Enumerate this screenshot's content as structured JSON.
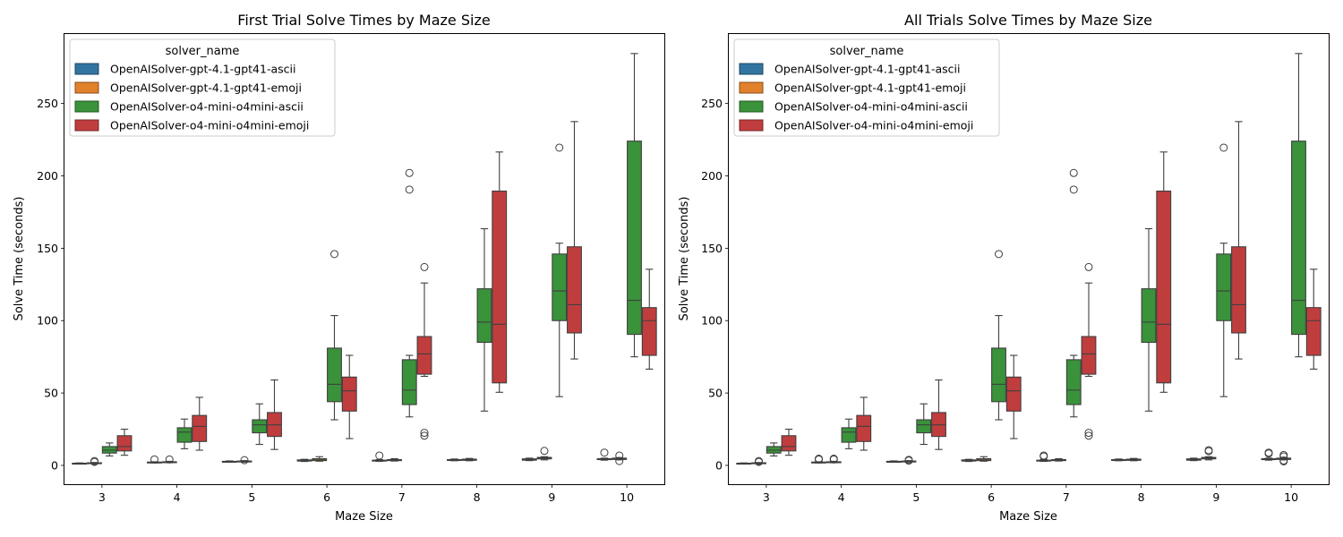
{
  "chart_data": [
    {
      "type": "box",
      "title": "First Trial Solve Times by Maze Size",
      "xlabel": "Maze Size",
      "ylabel": "Solve Time (seconds)",
      "ylim": [
        -13,
        298
      ],
      "yticks": [
        0,
        50,
        100,
        150,
        200,
        250
      ],
      "categories": [
        "3",
        "4",
        "5",
        "6",
        "7",
        "8",
        "9",
        "10"
      ],
      "grid": false,
      "legend": {
        "title": "solver_name",
        "placement": "top-left"
      },
      "series": [
        {
          "name": "OpenAISolver-gpt-4.1-gpt41-ascii",
          "color": "#3274a1",
          "boxes": [
            {
              "low": 1.1,
              "q1": 1.2,
              "median": 1.3,
              "q3": 1.5,
              "high": 1.7,
              "outliers": []
            },
            {
              "low": 1.7,
              "q1": 1.9,
              "median": 2.1,
              "q3": 2.3,
              "high": 2.5,
              "outliers": [
                4.1
              ]
            },
            {
              "low": 2.2,
              "q1": 2.4,
              "median": 2.6,
              "q3": 2.8,
              "high": 3.1,
              "outliers": []
            },
            {
              "low": 2.7,
              "q1": 3.0,
              "median": 3.3,
              "q3": 3.8,
              "high": 4.2,
              "outliers": []
            },
            {
              "low": 2.8,
              "q1": 3.0,
              "median": 3.3,
              "q3": 3.6,
              "high": 4.0,
              "outliers": [
                6.8
              ]
            },
            {
              "low": 3.2,
              "q1": 3.4,
              "median": 3.7,
              "q3": 4.0,
              "high": 4.4,
              "outliers": []
            },
            {
              "low": 3.3,
              "q1": 3.6,
              "median": 4.0,
              "q3": 4.5,
              "high": 5.0,
              "outliers": []
            },
            {
              "low": 3.6,
              "q1": 4.0,
              "median": 4.3,
              "q3": 4.6,
              "high": 5.0,
              "outliers": [
                8.8
              ]
            }
          ]
        },
        {
          "name": "OpenAISolver-gpt-4.1-gpt41-emoji",
          "color": "#e1812c",
          "boxes": [
            {
              "low": 1.2,
              "q1": 1.3,
              "median": 1.5,
              "q3": 1.8,
              "high": 2.0,
              "outliers": [
                3.0,
                2.4
              ]
            },
            {
              "low": 1.8,
              "q1": 2.0,
              "median": 2.2,
              "q3": 2.5,
              "high": 2.8,
              "outliers": [
                4.1
              ]
            },
            {
              "low": 2.3,
              "q1": 2.5,
              "median": 2.7,
              "q3": 3.0,
              "high": 3.3,
              "outliers": [
                3.6
              ]
            },
            {
              "low": 2.9,
              "q1": 3.3,
              "median": 3.8,
              "q3": 4.6,
              "high": 6.0,
              "outliers": []
            },
            {
              "low": 3.0,
              "q1": 3.3,
              "median": 3.7,
              "q3": 4.0,
              "high": 4.6,
              "outliers": []
            },
            {
              "low": 3.2,
              "q1": 3.5,
              "median": 3.9,
              "q3": 4.3,
              "high": 4.8,
              "outliers": []
            },
            {
              "low": 3.8,
              "q1": 4.5,
              "median": 5.0,
              "q3": 5.5,
              "high": 6.0,
              "outliers": [
                10.0
              ]
            },
            {
              "low": 3.8,
              "q1": 4.1,
              "median": 4.5,
              "q3": 5.0,
              "high": 5.4,
              "outliers": [
                6.8,
                3.0
              ]
            }
          ]
        },
        {
          "name": "OpenAISolver-o4-mini-o4mini-ascii",
          "color": "#3a923a",
          "boxes": [
            {
              "low": 6.5,
              "q1": 8.5,
              "median": 10.5,
              "q3": 13.0,
              "high": 15.5,
              "outliers": []
            },
            {
              "low": 11.5,
              "q1": 16.0,
              "median": 23.0,
              "q3": 26.0,
              "high": 32.0,
              "outliers": []
            },
            {
              "low": 14.5,
              "q1": 22.5,
              "median": 28.0,
              "q3": 31.5,
              "high": 42.5,
              "outliers": []
            },
            {
              "low": 31.5,
              "q1": 44.0,
              "median": 56.0,
              "q3": 81.0,
              "high": 103.5,
              "outliers": [
                146.0
              ]
            },
            {
              "low": 33.5,
              "q1": 42.0,
              "median": 52.0,
              "q3": 73.0,
              "high": 76.0,
              "outliers": [
                190.5,
                202.0
              ]
            },
            {
              "low": 37.5,
              "q1": 85.0,
              "median": 99.0,
              "q3": 122.0,
              "high": 163.5,
              "outliers": []
            },
            {
              "low": 47.5,
              "q1": 100.0,
              "median": 120.5,
              "q3": 146.0,
              "high": 153.5,
              "outliers": [
                219.5
              ]
            },
            {
              "low": 75.0,
              "q1": 90.5,
              "median": 114.0,
              "q3": 224.0,
              "high": 284.5,
              "outliers": []
            }
          ]
        },
        {
          "name": "OpenAISolver-o4-mini-o4mini-emoji",
          "color": "#c03d3e",
          "boxes": [
            {
              "low": 7.0,
              "q1": 10.0,
              "median": 13.0,
              "q3": 20.5,
              "high": 25.0,
              "outliers": []
            },
            {
              "low": 10.5,
              "q1": 16.5,
              "median": 27.0,
              "q3": 34.5,
              "high": 47.0,
              "outliers": []
            },
            {
              "low": 11.0,
              "q1": 20.0,
              "median": 28.0,
              "q3": 36.5,
              "high": 59.0,
              "outliers": []
            },
            {
              "low": 18.5,
              "q1": 37.5,
              "median": 51.5,
              "q3": 61.0,
              "high": 76.0,
              "outliers": []
            },
            {
              "low": 61.5,
              "q1": 63.0,
              "median": 77.0,
              "q3": 89.0,
              "high": 126.0,
              "outliers": [
                137.0,
                22.5,
                20.5
              ]
            },
            {
              "low": 50.5,
              "q1": 57.0,
              "median": 97.5,
              "q3": 189.5,
              "high": 216.5,
              "outliers": []
            },
            {
              "low": 73.5,
              "q1": 91.5,
              "median": 111.0,
              "q3": 151.0,
              "high": 237.5,
              "outliers": []
            },
            {
              "low": 66.5,
              "q1": 76.0,
              "median": 100.0,
              "q3": 109.0,
              "high": 135.5,
              "outliers": []
            }
          ]
        }
      ]
    },
    {
      "type": "box",
      "title": "All Trials Solve Times by Maze Size",
      "xlabel": "Maze Size",
      "ylabel": "Solve Time (seconds)",
      "ylim": [
        -13,
        298
      ],
      "yticks": [
        0,
        50,
        100,
        150,
        200,
        250
      ],
      "categories": [
        "3",
        "4",
        "5",
        "6",
        "7",
        "8",
        "9",
        "10"
      ],
      "grid": false,
      "legend": {
        "title": "solver_name",
        "placement": "top-left"
      },
      "series": [
        {
          "name": "OpenAISolver-gpt-4.1-gpt41-ascii",
          "color": "#3274a1",
          "boxes": [
            {
              "low": 1.1,
              "q1": 1.2,
              "median": 1.3,
              "q3": 1.5,
              "high": 1.7,
              "outliers": []
            },
            {
              "low": 1.7,
              "q1": 1.9,
              "median": 2.1,
              "q3": 2.3,
              "high": 2.5,
              "outliers": [
                4.1,
                4.6
              ]
            },
            {
              "low": 2.2,
              "q1": 2.4,
              "median": 2.6,
              "q3": 2.8,
              "high": 3.1,
              "outliers": []
            },
            {
              "low": 2.7,
              "q1": 3.0,
              "median": 3.3,
              "q3": 3.8,
              "high": 4.2,
              "outliers": []
            },
            {
              "low": 2.8,
              "q1": 3.0,
              "median": 3.3,
              "q3": 3.6,
              "high": 4.0,
              "outliers": [
                6.2,
                6.8
              ]
            },
            {
              "low": 3.2,
              "q1": 3.4,
              "median": 3.7,
              "q3": 4.0,
              "high": 4.4,
              "outliers": []
            },
            {
              "low": 3.3,
              "q1": 3.6,
              "median": 4.0,
              "q3": 4.5,
              "high": 5.0,
              "outliers": []
            },
            {
              "low": 3.6,
              "q1": 4.0,
              "median": 4.3,
              "q3": 4.6,
              "high": 5.0,
              "outliers": [
                8.2,
                8.8
              ]
            }
          ]
        },
        {
          "name": "OpenAISolver-gpt-4.1-gpt41-emoji",
          "color": "#e1812c",
          "boxes": [
            {
              "low": 1.2,
              "q1": 1.3,
              "median": 1.5,
              "q3": 1.8,
              "high": 2.0,
              "outliers": [
                2.4,
                3.0
              ]
            },
            {
              "low": 1.8,
              "q1": 2.0,
              "median": 2.2,
              "q3": 2.5,
              "high": 2.8,
              "outliers": [
                4.1,
                4.6
              ]
            },
            {
              "low": 2.3,
              "q1": 2.5,
              "median": 2.7,
              "q3": 3.0,
              "high": 3.3,
              "outliers": [
                3.3,
                3.8
              ]
            },
            {
              "low": 2.9,
              "q1": 3.3,
              "median": 3.8,
              "q3": 4.6,
              "high": 6.0,
              "outliers": []
            },
            {
              "low": 3.0,
              "q1": 3.3,
              "median": 3.7,
              "q3": 4.0,
              "high": 4.6,
              "outliers": []
            },
            {
              "low": 3.2,
              "q1": 3.5,
              "median": 3.9,
              "q3": 4.3,
              "high": 4.8,
              "outliers": []
            },
            {
              "low": 3.8,
              "q1": 4.5,
              "median": 5.0,
              "q3": 5.5,
              "high": 6.0,
              "outliers": [
                9.8,
                10.5
              ]
            },
            {
              "low": 3.8,
              "q1": 4.1,
              "median": 4.5,
              "q3": 5.0,
              "high": 5.4,
              "outliers": [
                6.2,
                7.2,
                2.8,
                3.4
              ]
            }
          ]
        },
        {
          "name": "OpenAISolver-o4-mini-o4mini-ascii",
          "color": "#3a923a",
          "boxes": [
            {
              "low": 6.5,
              "q1": 8.5,
              "median": 10.5,
              "q3": 13.0,
              "high": 15.5,
              "outliers": []
            },
            {
              "low": 11.5,
              "q1": 16.0,
              "median": 23.0,
              "q3": 26.0,
              "high": 32.0,
              "outliers": []
            },
            {
              "low": 14.5,
              "q1": 22.5,
              "median": 28.0,
              "q3": 31.5,
              "high": 42.5,
              "outliers": []
            },
            {
              "low": 31.5,
              "q1": 44.0,
              "median": 56.0,
              "q3": 81.0,
              "high": 103.5,
              "outliers": [
                146.0
              ]
            },
            {
              "low": 33.5,
              "q1": 42.0,
              "median": 52.0,
              "q3": 73.0,
              "high": 76.0,
              "outliers": [
                190.5,
                202.0
              ]
            },
            {
              "low": 37.5,
              "q1": 85.0,
              "median": 99.0,
              "q3": 122.0,
              "high": 163.5,
              "outliers": []
            },
            {
              "low": 47.5,
              "q1": 100.0,
              "median": 120.5,
              "q3": 146.0,
              "high": 153.5,
              "outliers": [
                219.5
              ]
            },
            {
              "low": 75.0,
              "q1": 90.5,
              "median": 114.0,
              "q3": 224.0,
              "high": 284.5,
              "outliers": []
            }
          ]
        },
        {
          "name": "OpenAISolver-o4-mini-o4mini-emoji",
          "color": "#c03d3e",
          "boxes": [
            {
              "low": 7.0,
              "q1": 10.0,
              "median": 13.0,
              "q3": 20.5,
              "high": 25.0,
              "outliers": []
            },
            {
              "low": 10.5,
              "q1": 16.5,
              "median": 27.0,
              "q3": 34.5,
              "high": 47.0,
              "outliers": []
            },
            {
              "low": 11.0,
              "q1": 20.0,
              "median": 28.0,
              "q3": 36.5,
              "high": 59.0,
              "outliers": []
            },
            {
              "low": 18.5,
              "q1": 37.5,
              "median": 51.5,
              "q3": 61.0,
              "high": 76.0,
              "outliers": []
            },
            {
              "low": 61.5,
              "q1": 63.0,
              "median": 77.0,
              "q3": 89.0,
              "high": 126.0,
              "outliers": [
                137.0,
                22.5,
                20.5
              ]
            },
            {
              "low": 50.5,
              "q1": 57.0,
              "median": 97.5,
              "q3": 189.5,
              "high": 216.5,
              "outliers": []
            },
            {
              "low": 73.5,
              "q1": 91.5,
              "median": 111.0,
              "q3": 151.0,
              "high": 237.5,
              "outliers": []
            },
            {
              "low": 66.5,
              "q1": 76.0,
              "median": 100.0,
              "q3": 109.0,
              "high": 135.5,
              "outliers": []
            }
          ]
        }
      ]
    }
  ]
}
